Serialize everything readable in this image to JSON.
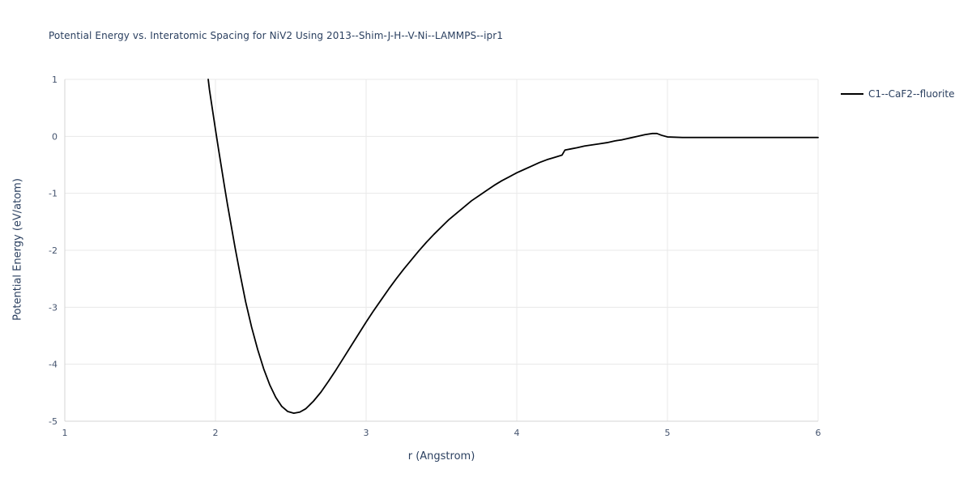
{
  "title": "Potential Energy vs. Interatomic Spacing for NiV2 Using 2013--Shim-J-H--V-Ni--LAMMPS--ipr1",
  "axes": {
    "x_label": "r (Angstrom)",
    "y_label": "Potential Energy (eV/atom)"
  },
  "legend": {
    "items": [
      {
        "label": "C1--CaF2--fluorite",
        "color": "#000000"
      }
    ]
  },
  "colors": {
    "title_text": "#2a3f5f",
    "tick_text": "#44536e",
    "grid": "#e8e8e8",
    "axis": "#d4d4d4",
    "line": "#000000",
    "background": "#ffffff"
  },
  "chart_data": {
    "type": "line",
    "title": "Potential Energy vs. Interatomic Spacing for NiV2 Using 2013--Shim-J-H--V-Ni--LAMMPS--ipr1",
    "xlabel": "r (Angstrom)",
    "ylabel": "Potential Energy (eV/atom)",
    "xlim": [
      1,
      6
    ],
    "ylim": [
      -5,
      1
    ],
    "x_ticks": [
      1,
      2,
      3,
      4,
      5,
      6
    ],
    "y_ticks": [
      -5,
      -4,
      -3,
      -2,
      -1,
      0,
      1
    ],
    "grid": true,
    "legend_position": "top-right",
    "series": [
      {
        "name": "C1--CaF2--fluorite",
        "color": "#000000",
        "points": [
          [
            1.952,
            1.0
          ],
          [
            1.96,
            0.82
          ],
          [
            1.98,
            0.47
          ],
          [
            2.0,
            0.12
          ],
          [
            2.02,
            -0.22
          ],
          [
            2.04,
            -0.55
          ],
          [
            2.06,
            -0.88
          ],
          [
            2.08,
            -1.2
          ],
          [
            2.1,
            -1.5
          ],
          [
            2.13,
            -1.95
          ],
          [
            2.16,
            -2.37
          ],
          [
            2.2,
            -2.9
          ],
          [
            2.24,
            -3.35
          ],
          [
            2.28,
            -3.74
          ],
          [
            2.32,
            -4.08
          ],
          [
            2.36,
            -4.36
          ],
          [
            2.4,
            -4.58
          ],
          [
            2.44,
            -4.74
          ],
          [
            2.48,
            -4.83
          ],
          [
            2.52,
            -4.86
          ],
          [
            2.56,
            -4.84
          ],
          [
            2.6,
            -4.78
          ],
          [
            2.65,
            -4.65
          ],
          [
            2.7,
            -4.49
          ],
          [
            2.75,
            -4.3
          ],
          [
            2.8,
            -4.1
          ],
          [
            2.85,
            -3.89
          ],
          [
            2.9,
            -3.68
          ],
          [
            2.95,
            -3.47
          ],
          [
            3.0,
            -3.26
          ],
          [
            3.05,
            -3.06
          ],
          [
            3.1,
            -2.87
          ],
          [
            3.15,
            -2.68
          ],
          [
            3.2,
            -2.5
          ],
          [
            3.25,
            -2.33
          ],
          [
            3.3,
            -2.17
          ],
          [
            3.35,
            -2.01
          ],
          [
            3.4,
            -1.86
          ],
          [
            3.45,
            -1.72
          ],
          [
            3.5,
            -1.59
          ],
          [
            3.55,
            -1.46
          ],
          [
            3.6,
            -1.35
          ],
          [
            3.65,
            -1.24
          ],
          [
            3.7,
            -1.13
          ],
          [
            3.75,
            -1.04
          ],
          [
            3.8,
            -0.95
          ],
          [
            3.85,
            -0.86
          ],
          [
            3.9,
            -0.78
          ],
          [
            3.95,
            -0.71
          ],
          [
            4.0,
            -0.64
          ],
          [
            4.05,
            -0.58
          ],
          [
            4.1,
            -0.52
          ],
          [
            4.15,
            -0.46
          ],
          [
            4.2,
            -0.41
          ],
          [
            4.25,
            -0.37
          ],
          [
            4.3,
            -0.33
          ],
          [
            4.32,
            -0.24
          ],
          [
            4.36,
            -0.22
          ],
          [
            4.4,
            -0.2
          ],
          [
            4.45,
            -0.17
          ],
          [
            4.5,
            -0.15
          ],
          [
            4.55,
            -0.13
          ],
          [
            4.6,
            -0.11
          ],
          [
            4.65,
            -0.08
          ],
          [
            4.7,
            -0.06
          ],
          [
            4.75,
            -0.03
          ],
          [
            4.8,
            0.0
          ],
          [
            4.85,
            0.03
          ],
          [
            4.9,
            0.05
          ],
          [
            4.93,
            0.05
          ],
          [
            4.96,
            0.02
          ],
          [
            5.0,
            -0.01
          ],
          [
            5.1,
            -0.02
          ],
          [
            5.5,
            -0.02
          ],
          [
            6.0,
            -0.02
          ]
        ]
      }
    ]
  }
}
